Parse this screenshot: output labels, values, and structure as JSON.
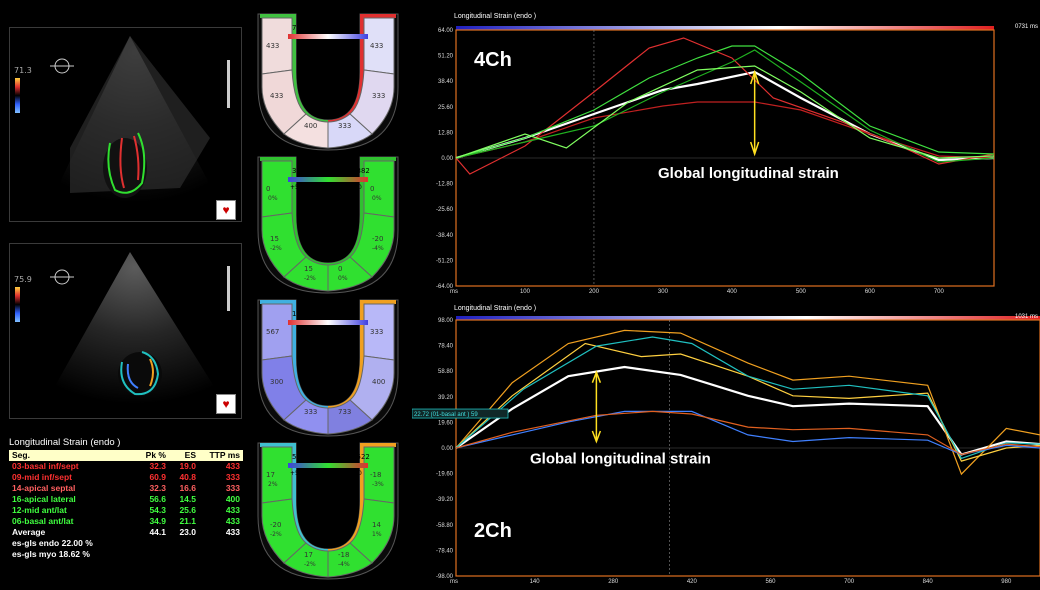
{
  "echo": {
    "top": {
      "depth_label": "71.3"
    },
    "bottom": {
      "depth_label": "75.9"
    }
  },
  "table": {
    "title": "Longitudinal Strain (endo )",
    "headers": [
      "Seg.",
      "Pk %",
      "ES",
      "TTP ms"
    ],
    "rows": [
      {
        "seg": "03-basal inf/sept",
        "pk": "32.3",
        "es": "19.0",
        "ttp": "433",
        "color": "#ff3030"
      },
      {
        "seg": "09-mid inf/sept",
        "pk": "60.9",
        "es": "40.8",
        "ttp": "333",
        "color": "#ff3030"
      },
      {
        "seg": "14-apical septal",
        "pk": "32.3",
        "es": "16.6",
        "ttp": "333",
        "color": "#ff6060"
      },
      {
        "seg": "16-apical lateral",
        "pk": "56.6",
        "es": "14.5",
        "ttp": "400",
        "color": "#40ff40"
      },
      {
        "seg": "12-mid ant/lat",
        "pk": "54.3",
        "es": "25.6",
        "ttp": "433",
        "color": "#40ff40"
      },
      {
        "seg": "06-basal ant/lat",
        "pk": "34.9",
        "es": "21.1",
        "ttp": "433",
        "color": "#40ff40"
      },
      {
        "seg": "Average",
        "pk": "44.1",
        "es": "23.0",
        "ttp": "433",
        "color": "#ffffff"
      }
    ],
    "gls_endo": "es-gls endo 22.00 %",
    "gls_myo": "es-gls myo  18.62 %"
  },
  "bullseyes": [
    {
      "header_left": "733 ms",
      "header_right": "1",
      "caption": "Time To Peak",
      "left_top": "433",
      "right_top": "433",
      "left_mid": "433",
      "right_mid": "333",
      "bot_left": "400",
      "bot_right": "333"
    },
    {
      "header_left": "382 ms",
      "header_right": "-382",
      "sub_left": "+50",
      "caption": "Phase",
      "sub_right": "-50",
      "left_top": "0",
      "right_top": "0",
      "left_top2": "0%",
      "right_top2": "0%",
      "left_mid": "15",
      "left_mid2": "-2%",
      "right_mid": "-20",
      "right_mid2": "-4%",
      "bot_left": "15",
      "bot_left2": "-2%",
      "bot_right": "0",
      "bot_right2": "0%"
    },
    {
      "header_left": "1033 ms",
      "header_right": "1",
      "caption": "Time To Peak",
      "left_top": "567",
      "right_top": "333",
      "left_mid": "300",
      "right_mid": "400",
      "bot_left": "333",
      "bot_right": "733"
    },
    {
      "header_left": "522 ms",
      "header_right": "-522",
      "sub_left": "+50",
      "caption": "Phase",
      "sub_right": "-50",
      "left_top": "17",
      "left_top2": "2%",
      "right_top": "-18",
      "right_top2": "-3%",
      "left_mid": "-20",
      "left_mid2": "-2%",
      "right_mid": "14",
      "right_mid2": "1%",
      "bot_left": "17",
      "bot_left2": "-2%",
      "bot_right": "-18",
      "bot_right2": "-4%"
    }
  ],
  "chart_data": [
    {
      "type": "line",
      "title": "Longitudinal Strain (endo )",
      "label": "4Ch",
      "annotation": "Global longitudinal strain",
      "corner": "0731 ms",
      "xunit": "ms",
      "ylim": [
        -64,
        64
      ],
      "xlim": [
        0,
        780
      ],
      "yticks": [
        "64.00",
        "51.20",
        "38.40",
        "25.60",
        "12.80",
        "0.00",
        "-12.80",
        "-25.60",
        "-38.40",
        "-51.20",
        "-64.00"
      ],
      "xticks": [
        "100",
        "200",
        "300",
        "400",
        "500",
        "600",
        "700"
      ],
      "series": [
        {
          "color": "#ffffff",
          "values": [
            [
              0,
              0
            ],
            [
              100,
              10
            ],
            [
              200,
              22
            ],
            [
              300,
              34
            ],
            [
              350,
              37
            ],
            [
              433,
              43
            ],
            [
              500,
              30
            ],
            [
              600,
              12
            ],
            [
              700,
              -1
            ],
            [
              780,
              0
            ]
          ]
        },
        {
          "color": "#e03030",
          "values": [
            [
              0,
              0
            ],
            [
              20,
              -8
            ],
            [
              100,
              6
            ],
            [
              200,
              33
            ],
            [
              280,
              55
            ],
            [
              330,
              60
            ],
            [
              400,
              50
            ],
            [
              460,
              30
            ],
            [
              560,
              18
            ],
            [
              650,
              5
            ],
            [
              700,
              -3
            ],
            [
              780,
              2
            ]
          ]
        },
        {
          "color": "#c02020",
          "values": [
            [
              0,
              0
            ],
            [
              100,
              8
            ],
            [
              200,
              20
            ],
            [
              300,
              26
            ],
            [
              350,
              28
            ],
            [
              433,
              28
            ],
            [
              500,
              24
            ],
            [
              600,
              12
            ],
            [
              700,
              1
            ],
            [
              780,
              0
            ]
          ]
        },
        {
          "color": "#40e040",
          "values": [
            [
              0,
              0
            ],
            [
              100,
              10
            ],
            [
              200,
              24
            ],
            [
              280,
              40
            ],
            [
              350,
              50
            ],
            [
              400,
              56
            ],
            [
              433,
              56
            ],
            [
              500,
              42
            ],
            [
              600,
              16
            ],
            [
              700,
              3
            ],
            [
              780,
              2
            ]
          ]
        },
        {
          "color": "#20b020",
          "values": [
            [
              0,
              0
            ],
            [
              100,
              8
            ],
            [
              200,
              16
            ],
            [
              300,
              33
            ],
            [
              400,
              48
            ],
            [
              433,
              54
            ],
            [
              500,
              38
            ],
            [
              600,
              14
            ],
            [
              700,
              -2
            ],
            [
              780,
              0
            ]
          ]
        },
        {
          "color": "#80ff60",
          "values": [
            [
              0,
              0
            ],
            [
              100,
              12
            ],
            [
              160,
              5
            ],
            [
              250,
              28
            ],
            [
              350,
              44
            ],
            [
              433,
              46
            ],
            [
              500,
              33
            ],
            [
              600,
              10
            ],
            [
              700,
              0
            ],
            [
              780,
              1
            ]
          ]
        }
      ]
    },
    {
      "type": "line",
      "title": "Longitudinal Strain (endo )",
      "label": "2Ch",
      "annotation": "Global longitudinal strain",
      "corner": "1031 ms",
      "tag": "22.72 (01-basal ant )  59",
      "xunit": "ms",
      "ylim": [
        -98,
        98
      ],
      "xlim": [
        0,
        1040
      ],
      "yticks": [
        "98.00",
        "78.40",
        "58.80",
        "39.20",
        "19.60",
        "0.00",
        "-19.60",
        "-39.20",
        "-58.80",
        "-78.40",
        "-98.00"
      ],
      "xticks": [
        "140",
        "280",
        "420",
        "560",
        "700",
        "840",
        "980"
      ],
      "series": [
        {
          "color": "#ffffff",
          "values": [
            [
              0,
              0
            ],
            [
              100,
              30
            ],
            [
              200,
              55
            ],
            [
              300,
              62
            ],
            [
              400,
              56
            ],
            [
              520,
              40
            ],
            [
              600,
              32
            ],
            [
              700,
              34
            ],
            [
              840,
              32
            ],
            [
              900,
              -5
            ],
            [
              980,
              5
            ],
            [
              1040,
              3
            ]
          ]
        },
        {
          "color": "#f0a020",
          "values": [
            [
              0,
              0
            ],
            [
              100,
              50
            ],
            [
              200,
              80
            ],
            [
              300,
              90
            ],
            [
              400,
              88
            ],
            [
              520,
              65
            ],
            [
              600,
              52
            ],
            [
              700,
              55
            ],
            [
              840,
              48
            ],
            [
              900,
              -20
            ],
            [
              980,
              15
            ],
            [
              1040,
              10
            ]
          ]
        },
        {
          "color": "#ffd040",
          "values": [
            [
              0,
              0
            ],
            [
              100,
              40
            ],
            [
              230,
              80
            ],
            [
              330,
              70
            ],
            [
              400,
              72
            ],
            [
              520,
              55
            ],
            [
              600,
              40
            ],
            [
              700,
              38
            ],
            [
              840,
              42
            ],
            [
              900,
              -10
            ],
            [
              980,
              0
            ],
            [
              1040,
              2
            ]
          ]
        },
        {
          "color": "#20c0c0",
          "values": [
            [
              0,
              0
            ],
            [
              120,
              45
            ],
            [
              250,
              78
            ],
            [
              350,
              85
            ],
            [
              420,
              80
            ],
            [
              520,
              55
            ],
            [
              600,
              45
            ],
            [
              700,
              48
            ],
            [
              840,
              40
            ],
            [
              900,
              -8
            ],
            [
              980,
              4
            ],
            [
              1040,
              3
            ]
          ]
        },
        {
          "color": "#4080ff",
          "values": [
            [
              0,
              0
            ],
            [
              100,
              10
            ],
            [
              200,
              20
            ],
            [
              300,
              28
            ],
            [
              420,
              28
            ],
            [
              520,
              10
            ],
            [
              600,
              5
            ],
            [
              700,
              8
            ],
            [
              840,
              6
            ],
            [
              900,
              -5
            ],
            [
              980,
              2
            ],
            [
              1040,
              0
            ]
          ]
        },
        {
          "color": "#e06020",
          "values": [
            [
              0,
              0
            ],
            [
              100,
              12
            ],
            [
              250,
              25
            ],
            [
              350,
              28
            ],
            [
              420,
              26
            ],
            [
              520,
              16
            ],
            [
              600,
              14
            ],
            [
              700,
              15
            ],
            [
              840,
              10
            ],
            [
              900,
              -5
            ],
            [
              980,
              3
            ],
            [
              1040,
              1
            ]
          ]
        }
      ]
    }
  ]
}
